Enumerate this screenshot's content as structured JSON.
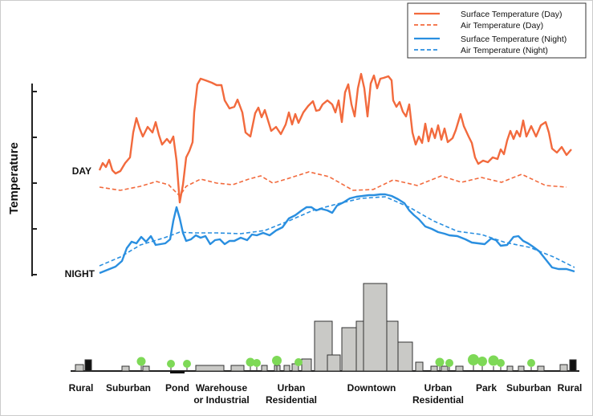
{
  "ylabel": "Temperature",
  "row_labels": {
    "day": "DAY",
    "night": "NIGHT"
  },
  "legend": [
    {
      "label": "Surface Temperature (Day)",
      "color": "#f26a3d",
      "style": "solid"
    },
    {
      "label": "Air Temperature  (Day)",
      "color": "#f26a3d",
      "style": "dashed"
    },
    {
      "label": "Surface Temperature (Night)",
      "color": "#2a8fe0",
      "style": "solid"
    },
    {
      "label": "Air Temperature (Night)",
      "color": "#2a8fe0",
      "style": "dashed"
    }
  ],
  "zones": [
    {
      "lines": [
        "Rural"
      ]
    },
    {
      "lines": [
        "Suburban"
      ]
    },
    {
      "lines": [
        "Pond"
      ]
    },
    {
      "lines": [
        "Warehouse",
        "or Industrial"
      ]
    },
    {
      "lines": [
        "Urban",
        "Residential"
      ]
    },
    {
      "lines": [
        "Downtown"
      ]
    },
    {
      "lines": [
        "Urban",
        "Residential"
      ]
    },
    {
      "lines": [
        "Park"
      ]
    },
    {
      "lines": [
        "Suburban"
      ]
    },
    {
      "lines": [
        "Rural"
      ]
    }
  ],
  "colors": {
    "day": "#f26a3d",
    "night": "#2a8fe0",
    "building": "#c9c9c6",
    "tree": "#7ed957",
    "axis": "#222222"
  }
}
